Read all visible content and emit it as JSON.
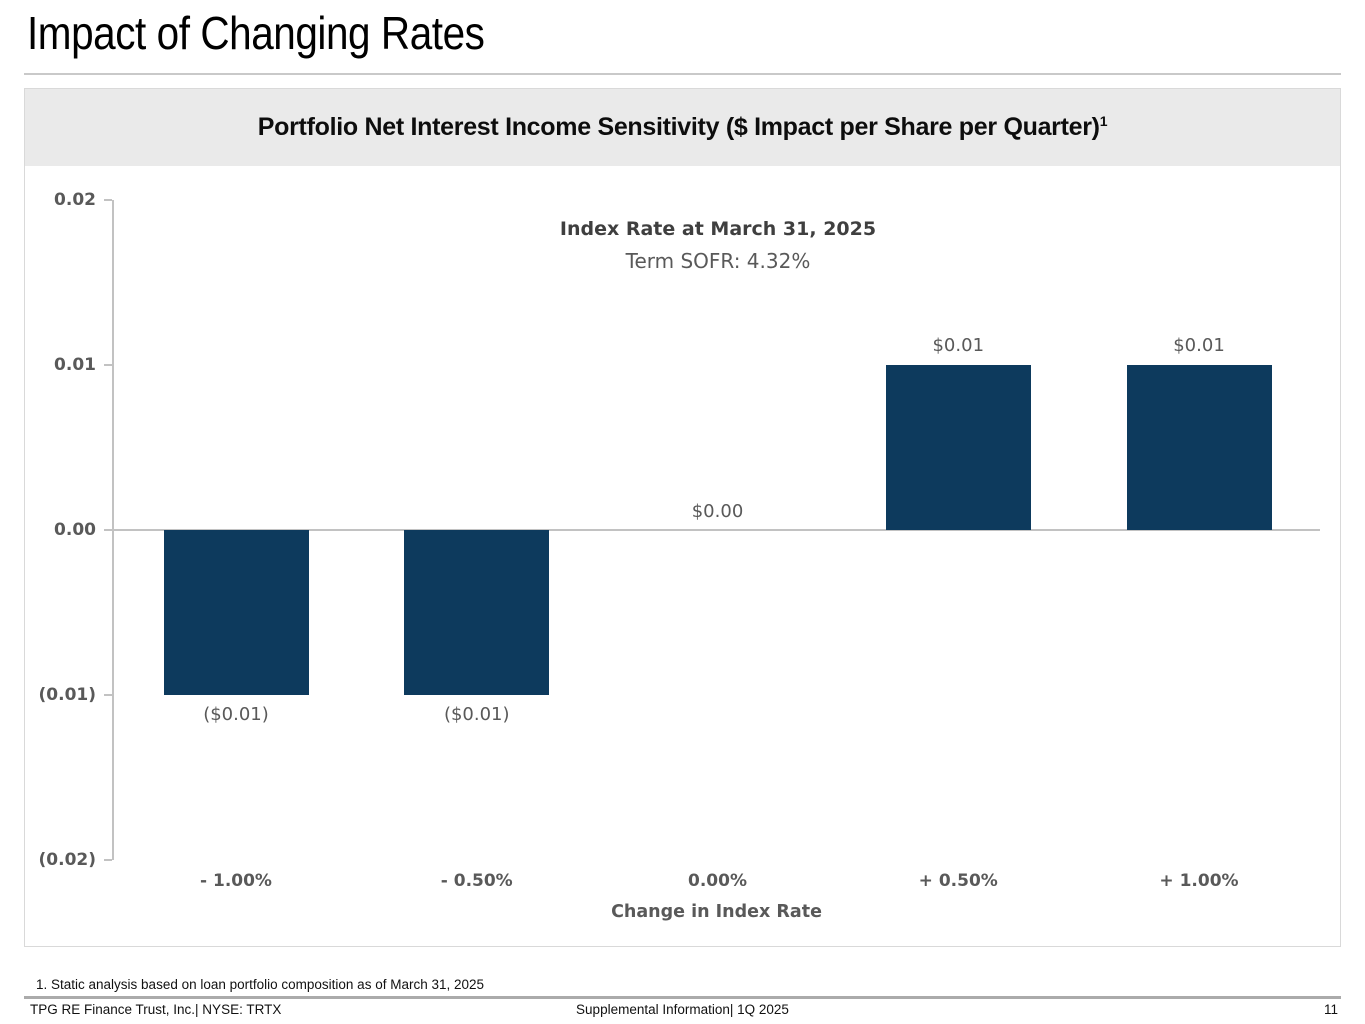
{
  "slide": {
    "title": "Impact of Changing Rates",
    "footnote": "1. Static analysis based on loan portfolio composition as of March 31, 2025",
    "footer": {
      "left": "TPG RE Finance Trust, Inc.| NYSE: TRTX",
      "center": "Supplemental Information| 1Q 2025",
      "page": "11"
    }
  },
  "chart": {
    "title": "Portfolio Net Interest Income Sensitivity ($ Impact per Share per Quarter)",
    "title_superscript": "1",
    "annotation_line1": "Index Rate at March 31, 2025",
    "annotation_line2": "Term SOFR: 4.32%"
  },
  "chart_data": {
    "type": "bar",
    "title": "Portfolio Net Interest Income Sensitivity ($ Impact per Share per Quarter)",
    "categories": [
      "- 1.00%",
      "- 0.50%",
      "0.00%",
      "+ 0.50%",
      "+ 1.00%"
    ],
    "values": [
      -0.01,
      -0.01,
      0.0,
      0.01,
      0.01
    ],
    "value_labels": [
      "($0.01)",
      "($0.01)",
      "$0.00",
      "$0.01",
      "$0.01"
    ],
    "xlabel": "Change in Index Rate",
    "ylabel": "",
    "ylim": [
      -0.02,
      0.02
    ],
    "y_ticks": [
      {
        "value": 0.02,
        "label": "0.02"
      },
      {
        "value": 0.01,
        "label": "0.01"
      },
      {
        "value": 0.0,
        "label": "0.00"
      },
      {
        "value": -0.01,
        "label": "(0.01)"
      },
      {
        "value": -0.02,
        "label": "(0.02)"
      }
    ],
    "annotation": [
      "Index Rate at March 31, 2025",
      "Term SOFR: 4.32%"
    ],
    "grid": "zero-line-only",
    "legend": "none",
    "bar_color": "#0d3a5d"
  },
  "colors": {
    "bar": "#0d3a5d",
    "header_band": "#eaeaea",
    "axis": "#c2c2c2",
    "label_gray": "#595959",
    "annotation_dark": "#3f3f3f",
    "footer_rule": "#ababab"
  }
}
